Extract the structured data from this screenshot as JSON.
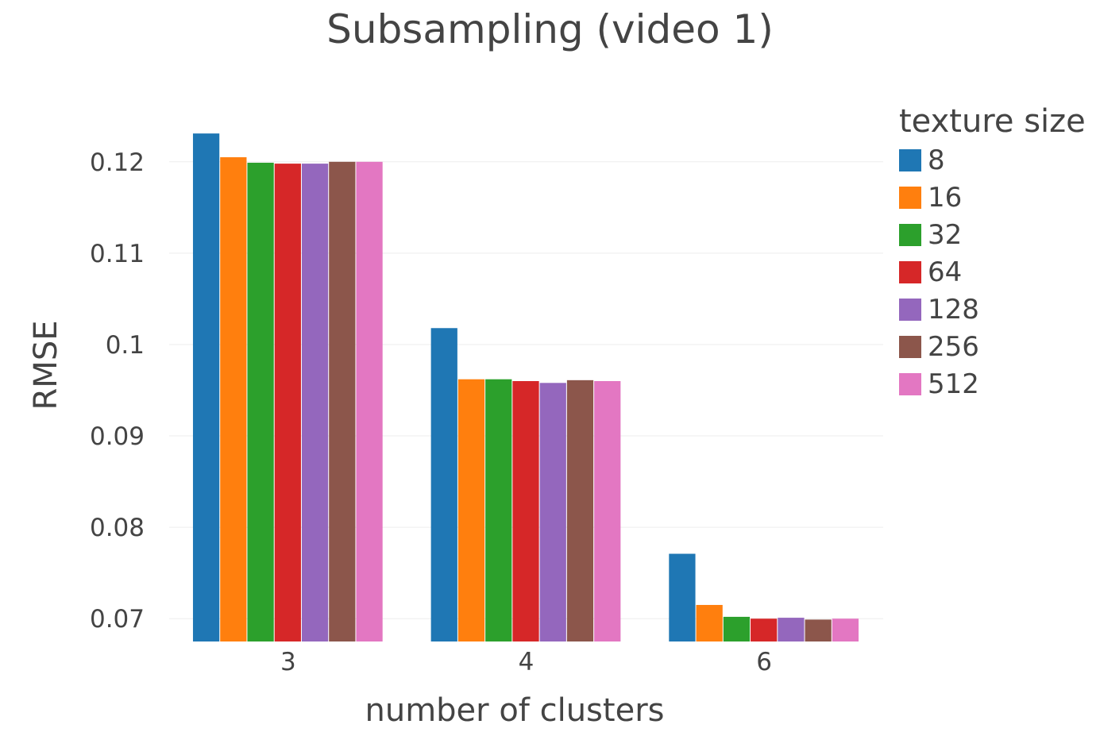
{
  "chart_data": {
    "type": "bar",
    "title": "Subsampling (video 1)",
    "xlabel": "number of clusters",
    "ylabel": "RMSE",
    "categories": [
      "3",
      "4",
      "6"
    ],
    "ylim": [
      0.0675,
      0.1265
    ],
    "yticks": [
      0.07,
      0.08,
      0.09,
      0.1,
      0.11,
      0.12
    ],
    "ytick_labels": [
      "0.07",
      "0.08",
      "0.09",
      "0.1",
      "0.11",
      "0.12"
    ],
    "grid": true,
    "legend": {
      "title": "texture size",
      "position": "top-right"
    },
    "series": [
      {
        "name": "8",
        "color": "#1f77b4",
        "values": [
          0.1231,
          0.1018,
          0.0771
        ]
      },
      {
        "name": "16",
        "color": "#ff7f0e",
        "values": [
          0.1205,
          0.0962,
          0.0715
        ]
      },
      {
        "name": "32",
        "color": "#2ca02c",
        "values": [
          0.1199,
          0.0962,
          0.0702
        ]
      },
      {
        "name": "64",
        "color": "#d62728",
        "values": [
          0.1198,
          0.096,
          0.07
        ]
      },
      {
        "name": "128",
        "color": "#9467bd",
        "values": [
          0.1198,
          0.0958,
          0.0701
        ]
      },
      {
        "name": "256",
        "color": "#8c564b",
        "values": [
          0.12,
          0.0961,
          0.0699
        ]
      },
      {
        "name": "512",
        "color": "#e377c2",
        "values": [
          0.12,
          0.096,
          0.07
        ]
      }
    ]
  }
}
